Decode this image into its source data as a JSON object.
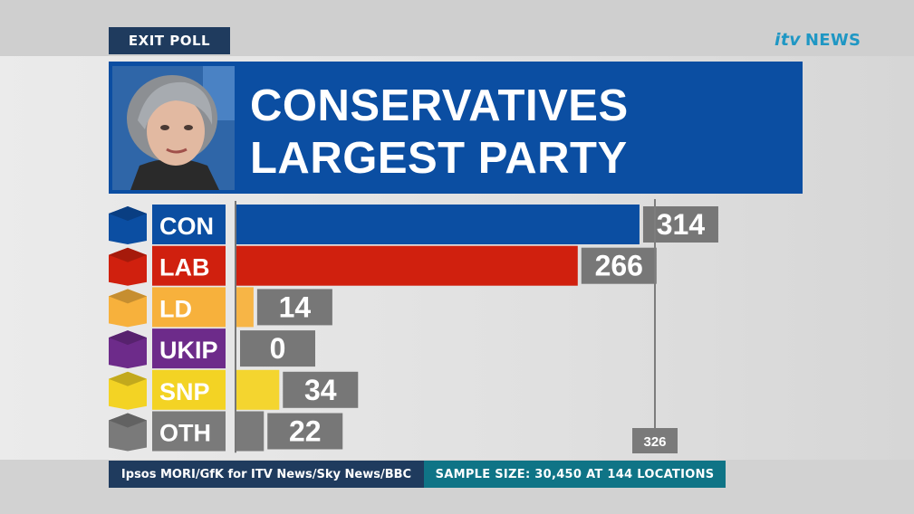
{
  "tag": "EXIT POLL",
  "logo": {
    "itv": "itv",
    "news": "NEWS"
  },
  "headline": {
    "line1": "CONSERVATIVES",
    "line2": "LARGEST PARTY"
  },
  "colors": {
    "CON": "#0b4ea2",
    "LAB": "#d0200e",
    "LD": "#f7b13c",
    "UKIP": "#6d2b8a",
    "SNP": "#f3d324",
    "OTH": "#7a7a7a"
  },
  "chart_data": {
    "type": "bar",
    "orientation": "horizontal",
    "categories": [
      "CON",
      "LAB",
      "LD",
      "UKIP",
      "SNP",
      "OTH"
    ],
    "values": [
      314,
      266,
      14,
      0,
      34,
      22
    ],
    "reference_line": {
      "value": 326,
      "label": "326"
    }
  },
  "footer": {
    "source": "Ipsos MORI/GfK for ITV News/Sky News/BBC",
    "sample": "SAMPLE SIZE: 30,450 AT 144 LOCATIONS"
  }
}
